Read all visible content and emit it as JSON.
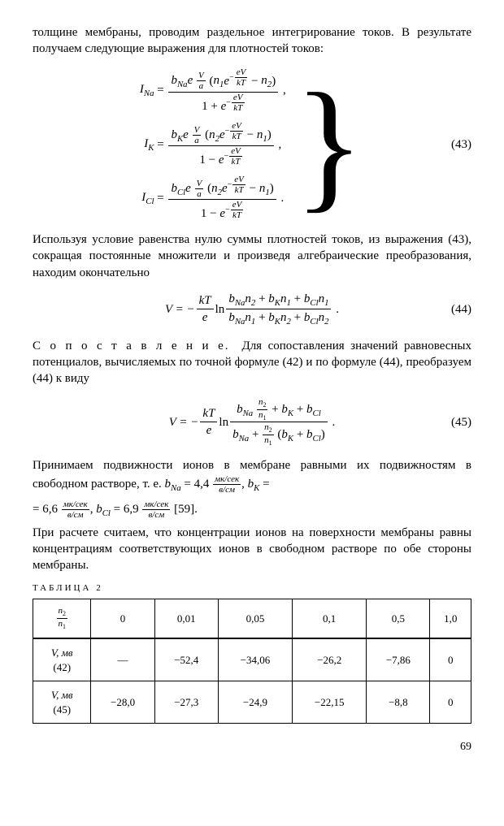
{
  "para": {
    "p1": "толщине мембраны, проводим раздельное интегрирование токов. В результате получаем следующие выражения для плотностей токов:",
    "eq43num": "(43)",
    "p2": "Используя условие равенства нулю суммы плотностей токов, из выражения (43), сокращая постоянные множители и произведя алгебраические преобразования, находим окончательно",
    "eq44num": "(44)",
    "p3_lead": "С о п о с т а в л е н и е.",
    "p3": "Для сопоставления значений равновесных потенциалов, вычисляемых по точной формуле (42) и по формуле (44), преобразуем (44) к виду",
    "eq45num": "(45)",
    "p4a": "Принимаем подвижности ионов в мембране равными их подвижностям в свободном растворе, т. е. ",
    "bNa": "b",
    "bNa_sub": "Na",
    "bNa_val": " = 4,4 ",
    "unit_num": "мк/сек",
    "unit_den": "в/см",
    "comma": ", ",
    "bK": "b",
    "bK_sub": "K",
    "bK_val": " =",
    "bK_val2": "= 6,6 ",
    "bCl": "b",
    "bCl_sub": "Cl",
    "bCl_val": " = 6,9 ",
    "ref": " [59].",
    "p5": "При расчете считаем, что концентрации ионов на поверхности мембраны равны концентрациям соответствующих ионов в свободном растворе по обе стороны мембраны.",
    "table_label": "ТАБЛИЦА 2"
  },
  "eq43": {
    "I_Na": "I",
    "Na": "Na",
    "I_K": "I",
    "K": "K",
    "I_Cl": "I",
    "Cl": "Cl",
    "b": "b",
    "e": "e",
    "V": "V",
    "a": "a",
    "n1": "n",
    "s1": "1",
    "n2": "n",
    "s2": "2",
    "exp_neg_eV": "eV",
    "exp_neg_kT": "kT",
    "one": "1",
    "plus": " + ",
    "minus": " − "
  },
  "eq44": {
    "lhs": "V = − ",
    "kT": "kT",
    "e": "e",
    "ln": " ln ",
    "num": "b",
    "Na": "Na",
    "n2": "n",
    "s2": "2",
    "plus": " + ",
    "K": "K",
    "n1": "n",
    "s1": "1",
    "Cl": "Cl"
  },
  "eq45": {
    "lhs": "V = − ",
    "kT": "kT",
    "e": "e",
    "ln": " ln ",
    "b": "b",
    "Na": "Na",
    "K": "K",
    "Cl": "Cl",
    "n2": "n",
    "s2": "2",
    "n1": "n",
    "s1": "1",
    "plus": " + ",
    "open": " (",
    "close": ")"
  },
  "table": {
    "header_ratio_num": "n",
    "header_ratio_sub2": "2",
    "header_ratio_sub1": "1",
    "cols": [
      "0",
      "0,01",
      "0,05",
      "0,1",
      "0,5",
      "1,0"
    ],
    "row1_label_V": "V, мв",
    "row1_label_eq": "(42)",
    "row1": [
      "—",
      "−52,4",
      "−34,06",
      "−26,2",
      "−7,86",
      "0"
    ],
    "row2_label_V": "V, мв",
    "row2_label_eq": "(45)",
    "row2": [
      "−28,0",
      "−27,3",
      "−24,9",
      "−22,15",
      "−8,8",
      "0"
    ]
  },
  "pagenum": "69"
}
